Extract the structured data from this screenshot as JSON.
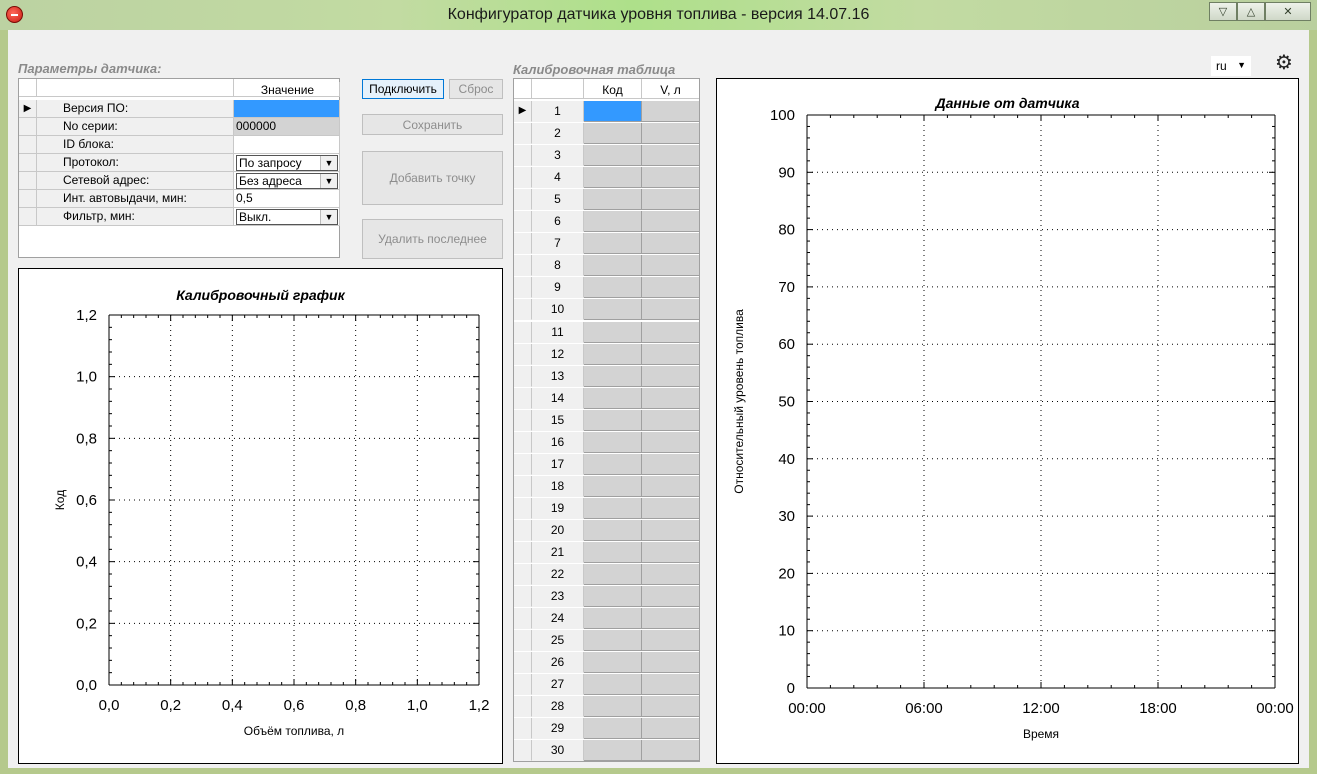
{
  "window": {
    "title": "Конфигуратор датчика уровня топлива - версия 14.07.16",
    "minimize_glyph": "▽",
    "maximize_glyph": "△",
    "close_glyph": "✕"
  },
  "header": {
    "params_title": "Параметры датчика:",
    "calib_table_title": "Калибровочная таблица",
    "language": "ru",
    "settings_icon": "gear-icon"
  },
  "params": {
    "value_header": "Значение",
    "rows": [
      {
        "name": "Версия ПО:",
        "value": "",
        "kind": "selected",
        "indicator": "▶"
      },
      {
        "name": "No серии:",
        "value": "000000",
        "kind": "readonly",
        "indicator": ""
      },
      {
        "name": "ID блока:",
        "value": "",
        "kind": "text",
        "indicator": ""
      },
      {
        "name": "Протокол:",
        "value": "По запросу",
        "kind": "combo",
        "indicator": ""
      },
      {
        "name": "Сетевой адрес:",
        "value": "Без адреса",
        "kind": "combo",
        "indicator": ""
      },
      {
        "name": "Инт. автовыдачи, мин:",
        "value": "0,5",
        "kind": "text",
        "indicator": ""
      },
      {
        "name": "Фильтр, мин:",
        "value": "Выкл.",
        "kind": "combo",
        "indicator": ""
      }
    ]
  },
  "buttons": {
    "connect": "Подключить",
    "reset": "Сброс",
    "save": "Сохранить",
    "add_point": "Добавить точку",
    "delete_last": "Удалить последнее"
  },
  "calib_table": {
    "col_code": "Код",
    "col_volume": "V, л",
    "row_indicator": "▶",
    "rows": [
      "1",
      "2",
      "3",
      "4",
      "5",
      "6",
      "7",
      "8",
      "9",
      "10",
      "11",
      "12",
      "13",
      "14",
      "15",
      "16",
      "17",
      "18",
      "19",
      "20",
      "21",
      "22",
      "23",
      "24",
      "25",
      "26",
      "27",
      "28",
      "29",
      "30"
    ]
  },
  "chart_data": [
    {
      "type": "line",
      "title": "Калибровочный график",
      "xlabel": "Объём топлива, л",
      "ylabel": "Код",
      "xlim": [
        0,
        1.2
      ],
      "ylim": [
        0,
        1.2
      ],
      "xticks": [
        "0,0",
        "0,2",
        "0,4",
        "0,6",
        "0,8",
        "1,0",
        "1,2"
      ],
      "yticks": [
        "0,0",
        "0,2",
        "0,4",
        "0,6",
        "0,8",
        "1,0",
        "1,2"
      ],
      "grid": true,
      "series": []
    },
    {
      "type": "line",
      "title": "Данные от датчика",
      "xlabel": "Время",
      "ylabel": "Относительный уровень топлива",
      "ylim": [
        0,
        100
      ],
      "xticks": [
        "00:00",
        "06:00",
        "12:00",
        "18:00",
        "00:00"
      ],
      "yticks": [
        "0",
        "10",
        "20",
        "30",
        "40",
        "50",
        "60",
        "70",
        "80",
        "90",
        "100"
      ],
      "grid": true,
      "series": []
    }
  ],
  "colors": {
    "selection": "#3399ff",
    "readonly_cell": "#d3d3d3",
    "title_bar": "#aee08a"
  }
}
